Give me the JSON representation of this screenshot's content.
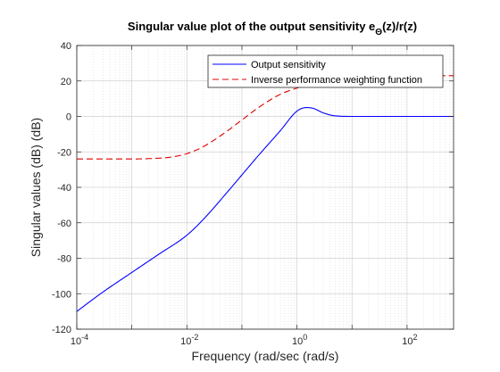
{
  "chart_data": {
    "type": "line",
    "title": {
      "main": "Singular value plot of the output sensitivity e",
      "subscript": "Θ",
      "suffix": "(z)/r(z)"
    },
    "xlabel": "Frequency (rad/sec (rad/s)",
    "ylabel": "Singular values (dB) (dB)",
    "xscale": "log",
    "xlim": [
      0.0001,
      700
    ],
    "ylim": [
      -120,
      40
    ],
    "grid": "major and minor",
    "legend_position": "top-right",
    "x_ticks": [
      {
        "value": 0.0001,
        "base": "10",
        "exp": "-4"
      },
      {
        "value": 0.01,
        "base": "10",
        "exp": "-2"
      },
      {
        "value": 1,
        "base": "10",
        "exp": "0"
      },
      {
        "value": 100,
        "base": "10",
        "exp": "2"
      }
    ],
    "y_ticks": [
      40,
      20,
      0,
      -20,
      -40,
      -60,
      -80,
      -100,
      -120
    ],
    "series": [
      {
        "name": "Output sensitivity",
        "color": "#0000ff",
        "style": "solid",
        "x": [
          0.0001,
          0.0003,
          0.001,
          0.003,
          0.01,
          0.02,
          0.05,
          0.1,
          0.2,
          0.5,
          1,
          1.5,
          2,
          3,
          5,
          10,
          100,
          700
        ],
        "y": [
          -110,
          -99,
          -88,
          -78,
          -67,
          -58,
          -44,
          -33,
          -22,
          -8,
          3,
          5,
          4.5,
          2,
          0.3,
          0,
          0,
          0
        ]
      },
      {
        "name": "Inverse performance weighting function",
        "color": "#e00000",
        "style": "dashed",
        "x": [
          0.0001,
          0.001,
          0.002,
          0.005,
          0.01,
          0.02,
          0.05,
          0.1,
          0.2,
          0.5,
          1,
          2,
          5,
          10,
          100,
          700
        ],
        "y": [
          -24,
          -24,
          -23.8,
          -23,
          -21,
          -17,
          -9,
          -2,
          5,
          12.5,
          16,
          19,
          21.5,
          22.5,
          23,
          23
        ]
      }
    ]
  }
}
